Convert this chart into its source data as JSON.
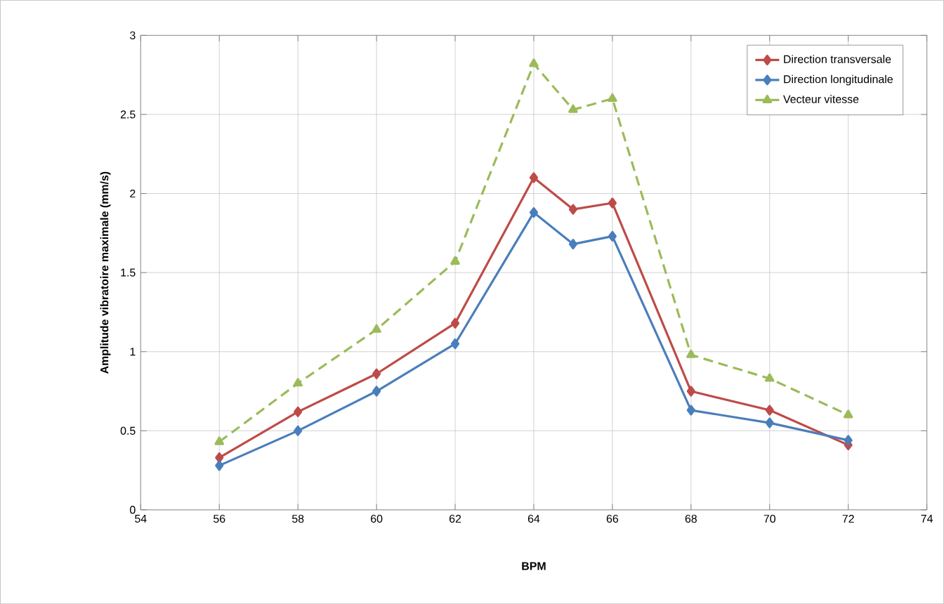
{
  "chart_data": {
    "type": "line",
    "xlabel": "BPM",
    "ylabel": "Amplitude vibratoire  maximale (mm/s)",
    "x": [
      56,
      58,
      60,
      62,
      64,
      65,
      66,
      68,
      70,
      72
    ],
    "series": [
      {
        "name": "Direction transversale",
        "color": "#be4b48",
        "marker": "diamond",
        "line_style": "solid",
        "values": [
          0.33,
          0.62,
          0.86,
          1.18,
          2.1,
          1.9,
          1.94,
          0.75,
          0.63,
          0.41
        ]
      },
      {
        "name": "Direction longitudinale",
        "color": "#4a7ebb",
        "marker": "diamond",
        "line_style": "solid",
        "values": [
          0.28,
          0.5,
          0.75,
          1.05,
          1.88,
          1.68,
          1.73,
          0.63,
          0.55,
          0.44
        ]
      },
      {
        "name": "Vecteur vitesse",
        "color": "#9bbb59",
        "marker": "triangle",
        "line_style": "dashed",
        "values": [
          0.43,
          0.8,
          1.14,
          1.57,
          2.82,
          2.53,
          2.6,
          0.98,
          0.83,
          0.6
        ]
      }
    ],
    "xlim": [
      54,
      74
    ],
    "xticks": [
      54,
      56,
      58,
      60,
      62,
      64,
      66,
      68,
      70,
      72,
      74
    ],
    "ylim": [
      0,
      3
    ],
    "yticks": [
      0,
      0.5,
      1,
      1.5,
      2,
      2.5,
      3
    ],
    "grid": true,
    "legend": "top right"
  }
}
